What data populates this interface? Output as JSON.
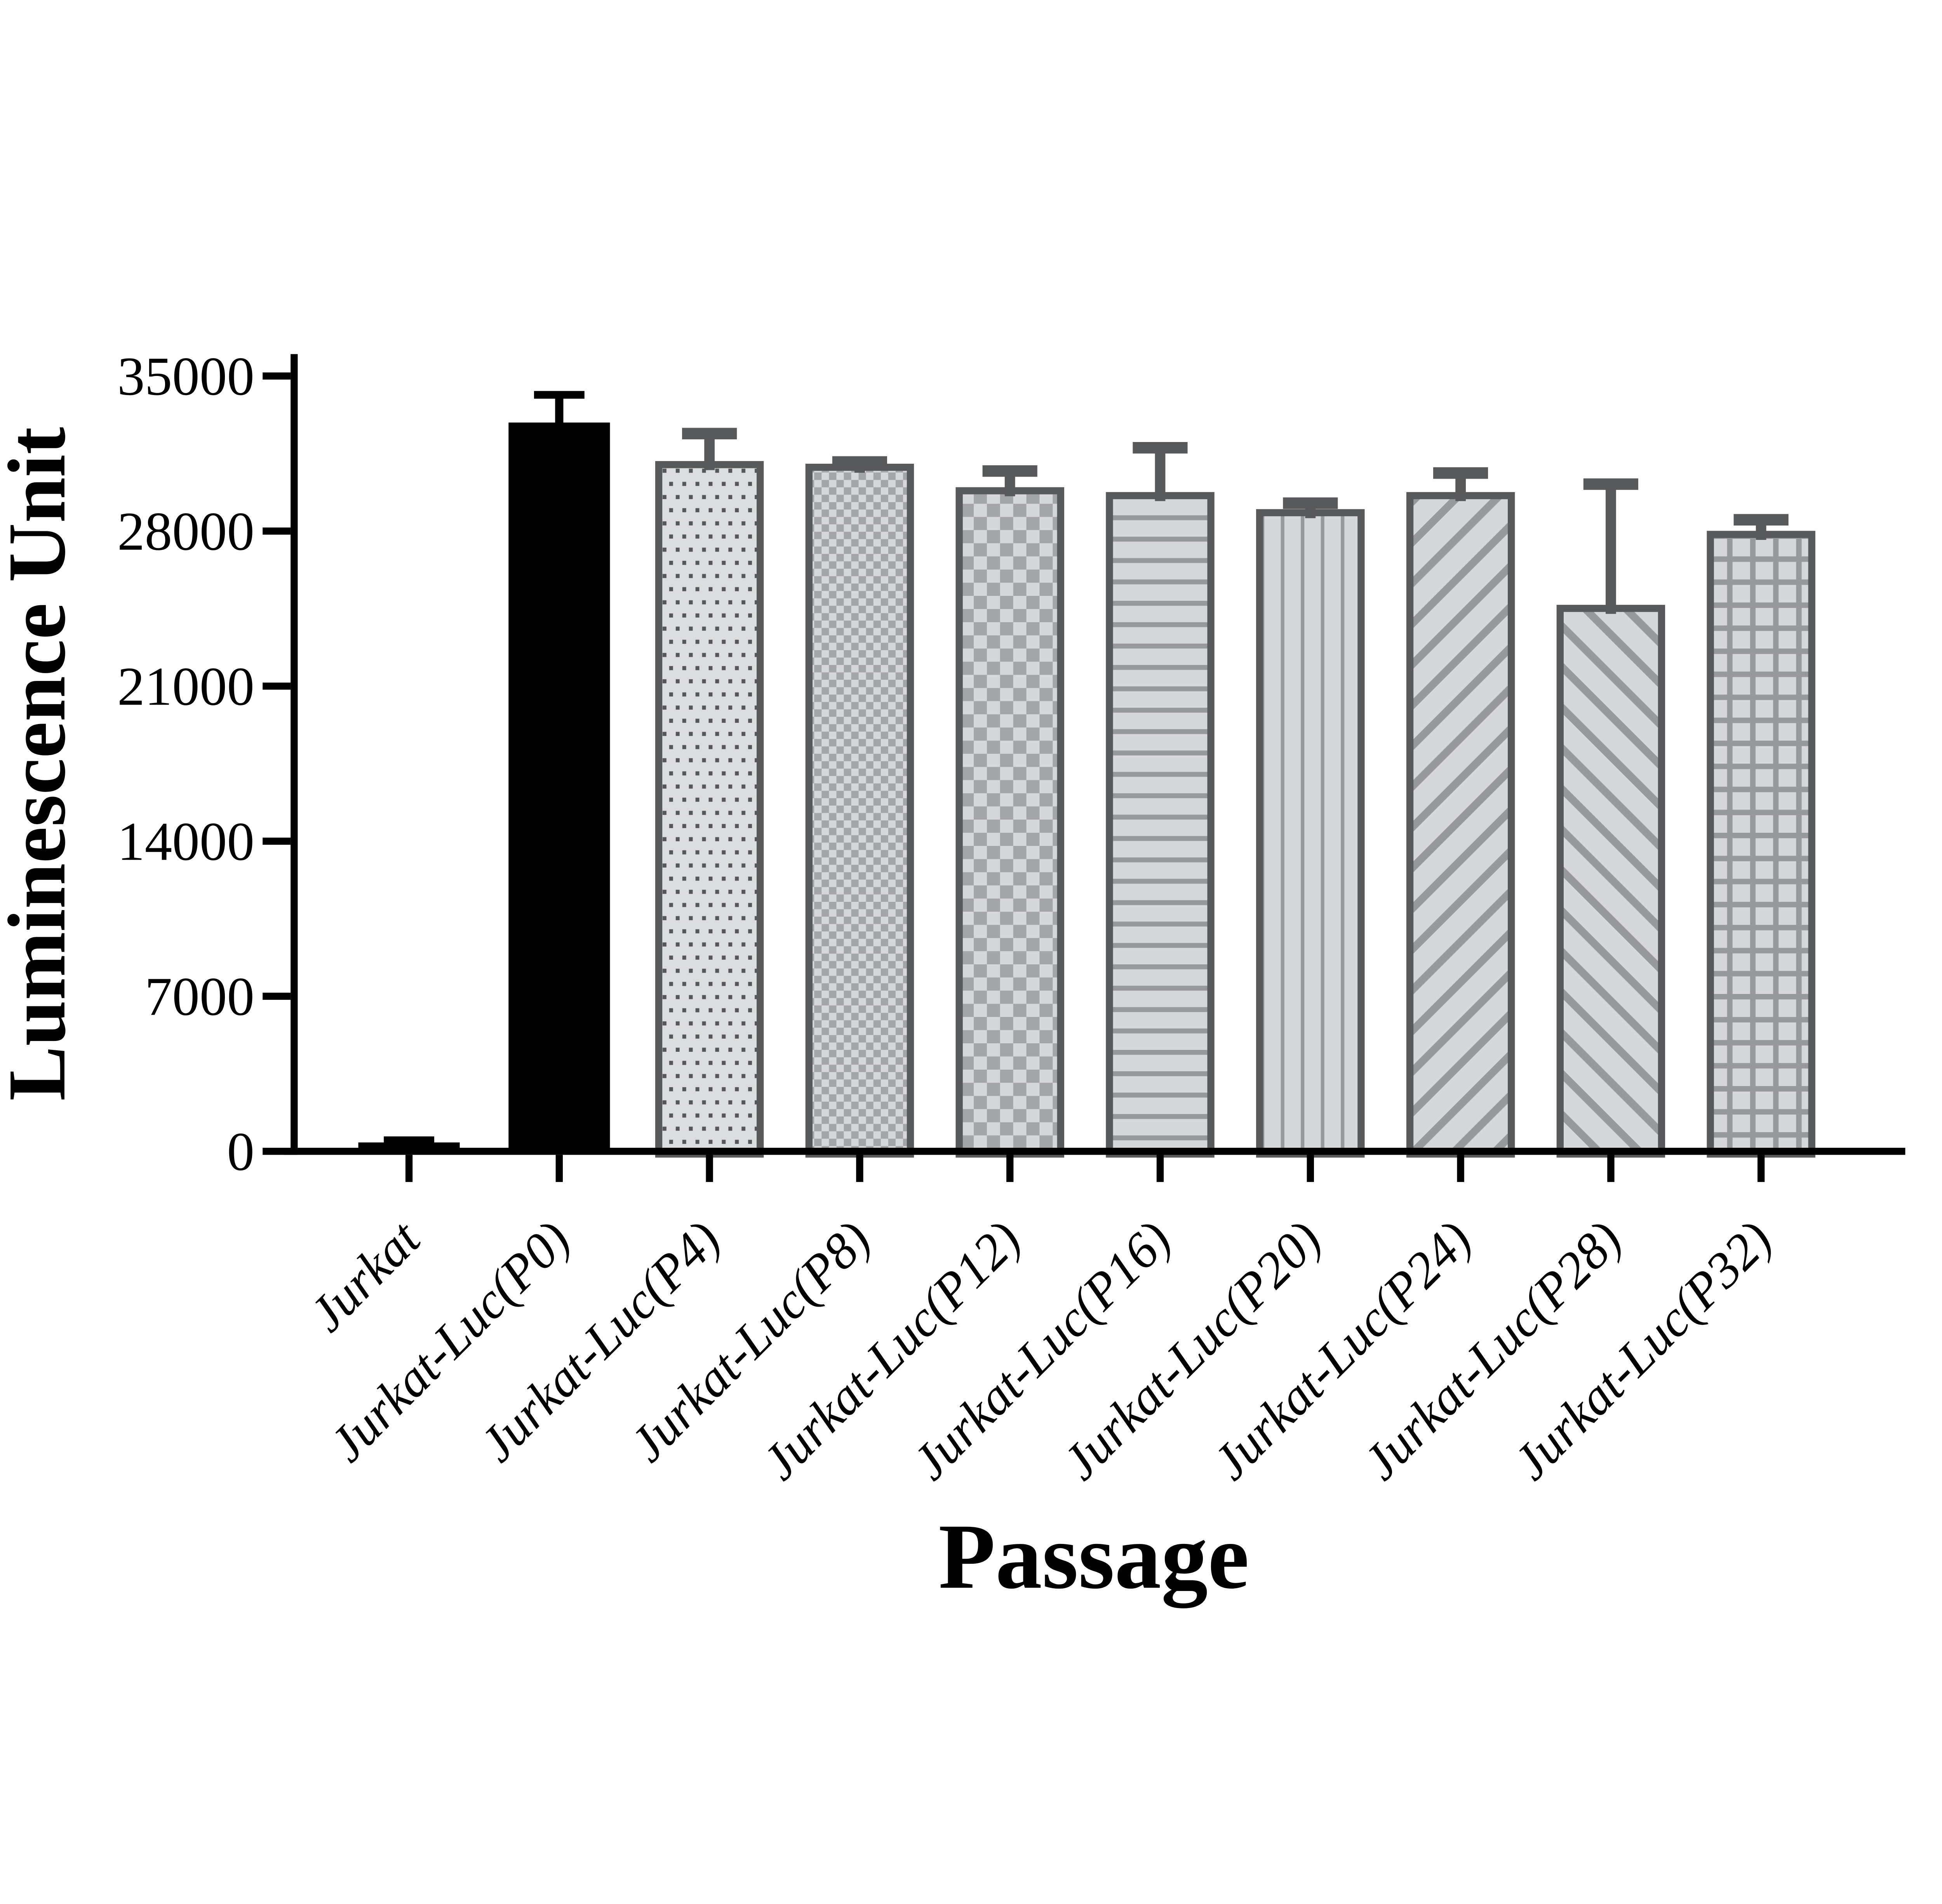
{
  "chart_data": {
    "type": "bar",
    "title": "",
    "xlabel": "Passage",
    "ylabel": "Luminescence Unit",
    "ylim": [
      0,
      35000
    ],
    "yticks": [
      0,
      7000,
      14000,
      21000,
      28000,
      35000
    ],
    "grid": false,
    "legend_position": "none",
    "categories": [
      "Jurkat",
      "Jurkat-Luc(P0)",
      "Jurkat-Luc(P4)",
      "Jurkat-Luc(P8)",
      "Jurkat-Luc(P12)",
      "Jurkat-Luc(P16)",
      "Jurkat-Luc(P20)",
      "Jurkat-Luc(P24)",
      "Jurkat-Luc(P28)",
      "Jurkat-Luc(P32)"
    ],
    "values": [
      400,
      32900,
      31000,
      30880,
      29820,
      29600,
      28830,
      29600,
      24510,
      27850
    ],
    "errors_plus": [
      100,
      1250,
      1400,
      240,
      890,
      2160,
      430,
      1020,
      5610,
      660
    ],
    "bar_patterns": [
      "solid-black",
      "solid-black",
      "dots",
      "checker-fine",
      "checker-coarse",
      "hlines",
      "vlines",
      "diag-up",
      "diag-down",
      "grid"
    ]
  },
  "colors": {
    "background": "#FFFFFF",
    "text": "#000000",
    "black_bar": "#000000",
    "bar_border_grey": "#58595B",
    "error_grey": "#58595B",
    "pattern_light_bg": "#D6D7D9",
    "pattern_dots_bg": "#DCDDDE",
    "pattern_dot": "#56575A",
    "pattern_mid_checker": "#A3A5A8",
    "pattern_mid_line": "#97999D"
  }
}
